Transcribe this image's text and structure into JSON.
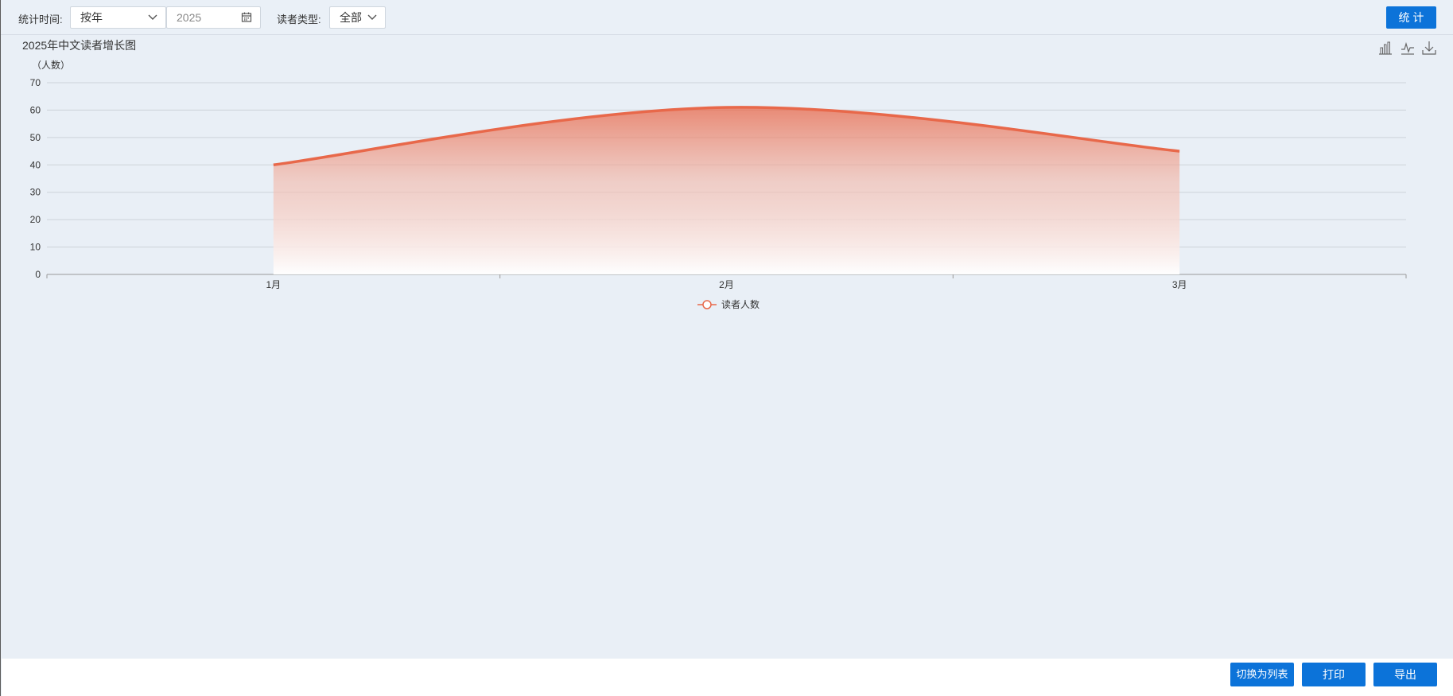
{
  "filters": {
    "time_label": "统计时间:",
    "time_mode": "按年",
    "year": "2025",
    "reader_type_label": "读者类型:",
    "reader_type": "全部",
    "submit_label": "统 计"
  },
  "chart_title": "2025年中文读者增长图",
  "chart_tools": [
    "bar-chart-icon",
    "line-chart-icon",
    "download-icon"
  ],
  "chart_data": {
    "type": "area",
    "categories": [
      "1月",
      "2月",
      "3月"
    ],
    "series": [
      {
        "name": "读者人数",
        "values": [
          40,
          61,
          45
        ]
      }
    ],
    "ylabel": "（人数）",
    "ylim": [
      0,
      70
    ],
    "yticks": [
      0,
      10,
      20,
      30,
      40,
      50,
      60,
      70
    ],
    "smooth": true,
    "grid": true,
    "legend": "bottom-center",
    "color": "#e8684a"
  },
  "footer": {
    "switch_label": "切换为列表",
    "print_label": "打印",
    "export_label": "导出"
  },
  "colors": {
    "accent": "#0c73d9",
    "background": "#e9eff6",
    "series": "#e8684a"
  }
}
